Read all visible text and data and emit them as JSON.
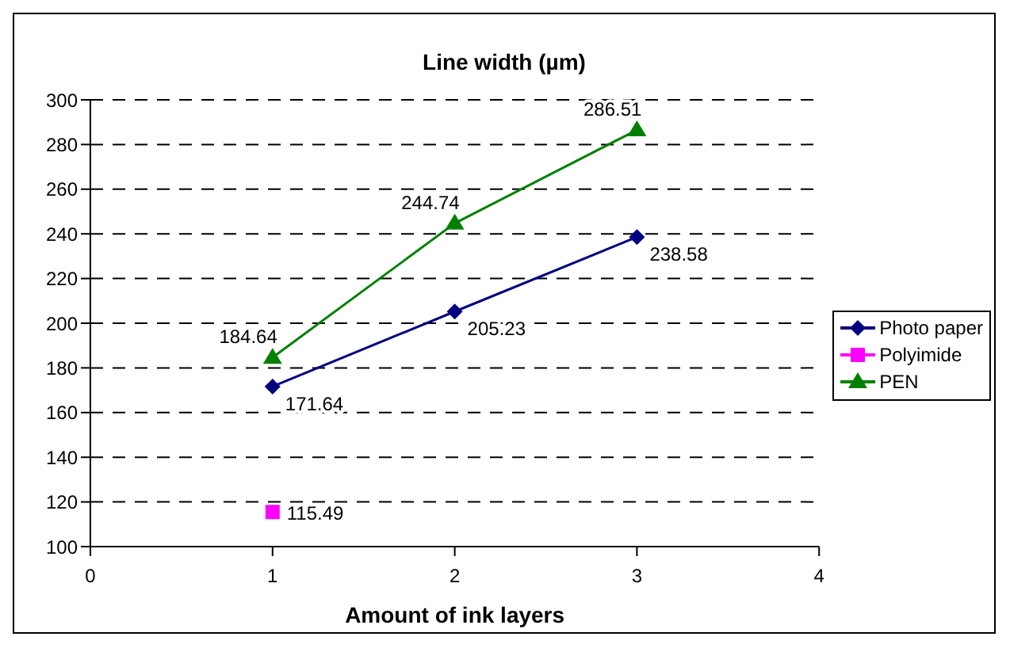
{
  "chart_data": {
    "type": "line",
    "title": "Line width (µm)",
    "xlabel": "Amount of ink layers",
    "xlim": [
      0,
      4
    ],
    "xticks": [
      0,
      1,
      2,
      3,
      4
    ],
    "ylim": [
      100,
      300
    ],
    "yticks": [
      100,
      120,
      140,
      160,
      180,
      200,
      220,
      240,
      260,
      280,
      300
    ],
    "grid": "y",
    "legend": "right",
    "data_labels": true,
    "series": [
      {
        "name": "Photo paper",
        "color": "#000080",
        "marker": "diamond",
        "x": [
          1,
          2,
          3
        ],
        "values": [
          171.64,
          205.23,
          238.58
        ]
      },
      {
        "name": "Polyimide",
        "color": "#ff00ff",
        "marker": "square",
        "x": [
          1
        ],
        "values": [
          115.49
        ]
      },
      {
        "name": "PEN",
        "color": "#008000",
        "marker": "triangle",
        "x": [
          1,
          2,
          3
        ],
        "values": [
          184.64,
          244.74,
          286.51
        ]
      }
    ]
  }
}
